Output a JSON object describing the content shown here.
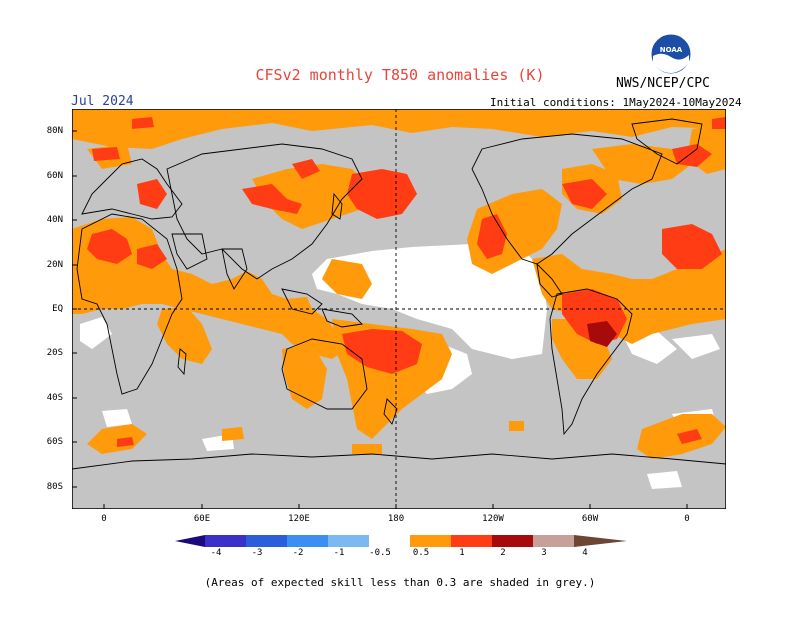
{
  "title": "CFSv2 monthly T850 anomalies (K)",
  "month_label": "Jul 2024",
  "initial_conditions": "Initial conditions: 1May2024-10May2024",
  "organization": "NWS/NCEP/CPC",
  "logo_text": "NOAA",
  "footnote": "(Areas of expected skill less than 0.3 are shaded in grey.)",
  "lat_labels": [
    "80N",
    "60N",
    "40N",
    "20N",
    "EQ",
    "20S",
    "40S",
    "60S",
    "80S"
  ],
  "lon_labels": [
    "0",
    "60E",
    "120E",
    "180",
    "120W",
    "60W",
    "0"
  ],
  "legend": {
    "labels": [
      "-4",
      "-3",
      "-2",
      "-1",
      "-0.5",
      "0.5",
      "1",
      "2",
      "3",
      "4"
    ],
    "colors": {
      "below_-4": "#1a0a7a",
      "-4_-3": "#3a32c8",
      "-3_-2": "#2b5ed8",
      "-2_-1": "#3c8ef0",
      "-1_-0.5": "#7cb8f2",
      "neutral": "#ffffff",
      "0.5_1": "#ff9a0a",
      "1_2": "#ff3c14",
      "2_3": "#a60a0a",
      "3_4": "#c8a09a",
      "above_4": "#6e4432"
    }
  },
  "map_colors": {
    "grey_low_skill": "#c4c4c4",
    "white_neutral": "#ffffff",
    "orange_0.5_1": "#ff9a0a",
    "red_1_2": "#ff3c14",
    "darkred_2_3": "#a60a0a"
  }
}
